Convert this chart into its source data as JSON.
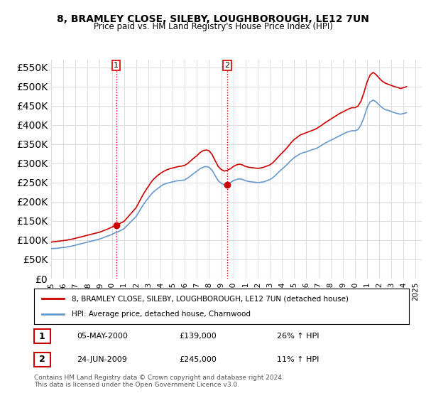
{
  "title": "8, BRAMLEY CLOSE, SILEBY, LOUGHBOROUGH, LE12 7UN",
  "subtitle": "Price paid vs. HM Land Registry's House Price Index (HPI)",
  "legend_label_red": "8, BRAMLEY CLOSE, SILEBY, LOUGHBOROUGH, LE12 7UN (detached house)",
  "legend_label_blue": "HPI: Average price, detached house, Charnwood",
  "annotation1_box": "1",
  "annotation1_date": "05-MAY-2000",
  "annotation1_price": "£139,000",
  "annotation1_hpi": "26% ↑ HPI",
  "annotation2_box": "2",
  "annotation2_date": "24-JUN-2009",
  "annotation2_price": "£245,000",
  "annotation2_hpi": "11% ↑ HPI",
  "footnote": "Contains HM Land Registry data © Crown copyright and database right 2024.\nThis data is licensed under the Open Government Licence v3.0.",
  "background_color": "#ffffff",
  "plot_background": "#ffffff",
  "grid_color": "#dddddd",
  "red_color": "#cc0000",
  "blue_color": "#6699cc",
  "ylim": [
    0,
    570000
  ],
  "yticks": [
    0,
    50000,
    100000,
    150000,
    200000,
    250000,
    300000,
    350000,
    400000,
    450000,
    500000,
    550000
  ],
  "purchase1_year": 2000.35,
  "purchase1_value": 139000,
  "purchase2_year": 2009.48,
  "purchase2_value": 245000,
  "vline1_year": 2000.35,
  "vline2_year": 2009.48,
  "hpi_years": [
    1995.0,
    1995.25,
    1995.5,
    1995.75,
    1996.0,
    1996.25,
    1996.5,
    1996.75,
    1997.0,
    1997.25,
    1997.5,
    1997.75,
    1998.0,
    1998.25,
    1998.5,
    1998.75,
    1999.0,
    1999.25,
    1999.5,
    1999.75,
    2000.0,
    2000.25,
    2000.5,
    2000.75,
    2001.0,
    2001.25,
    2001.5,
    2001.75,
    2002.0,
    2002.25,
    2002.5,
    2002.75,
    2003.0,
    2003.25,
    2003.5,
    2003.75,
    2004.0,
    2004.25,
    2004.5,
    2004.75,
    2005.0,
    2005.25,
    2005.5,
    2005.75,
    2006.0,
    2006.25,
    2006.5,
    2006.75,
    2007.0,
    2007.25,
    2007.5,
    2007.75,
    2008.0,
    2008.25,
    2008.5,
    2008.75,
    2009.0,
    2009.25,
    2009.5,
    2009.75,
    2010.0,
    2010.25,
    2010.5,
    2010.75,
    2011.0,
    2011.25,
    2011.5,
    2011.75,
    2012.0,
    2012.25,
    2012.5,
    2012.75,
    2013.0,
    2013.25,
    2013.5,
    2013.75,
    2014.0,
    2014.25,
    2014.5,
    2014.75,
    2015.0,
    2015.25,
    2015.5,
    2015.75,
    2016.0,
    2016.25,
    2016.5,
    2016.75,
    2017.0,
    2017.25,
    2017.5,
    2017.75,
    2018.0,
    2018.25,
    2018.5,
    2018.75,
    2019.0,
    2019.25,
    2019.5,
    2019.75,
    2020.0,
    2020.25,
    2020.5,
    2020.75,
    2021.0,
    2021.25,
    2021.5,
    2021.75,
    2022.0,
    2022.25,
    2022.5,
    2022.75,
    2023.0,
    2023.25,
    2023.5,
    2023.75,
    2024.0,
    2024.25
  ],
  "hpi_values": [
    78000,
    78500,
    79000,
    80000,
    81000,
    82000,
    83500,
    85000,
    87000,
    89000,
    91000,
    93000,
    95000,
    97000,
    99000,
    101000,
    103000,
    106000,
    109000,
    112000,
    115000,
    119000,
    122000,
    126000,
    130000,
    138000,
    146000,
    154000,
    162000,
    175000,
    188000,
    200000,
    210000,
    220000,
    228000,
    234000,
    240000,
    245000,
    248000,
    250000,
    252000,
    254000,
    255000,
    256000,
    257000,
    262000,
    268000,
    274000,
    280000,
    286000,
    290000,
    292000,
    290000,
    282000,
    268000,
    255000,
    248000,
    244000,
    246000,
    250000,
    255000,
    258000,
    260000,
    258000,
    255000,
    253000,
    252000,
    251000,
    250000,
    251000,
    252000,
    255000,
    258000,
    263000,
    270000,
    278000,
    285000,
    292000,
    300000,
    308000,
    315000,
    320000,
    325000,
    328000,
    330000,
    333000,
    336000,
    338000,
    342000,
    347000,
    352000,
    356000,
    360000,
    364000,
    368000,
    372000,
    376000,
    380000,
    383000,
    385000,
    385000,
    388000,
    400000,
    420000,
    445000,
    460000,
    465000,
    460000,
    452000,
    445000,
    440000,
    438000,
    435000,
    432000,
    430000,
    428000,
    430000,
    432000
  ],
  "red_years": [
    1995.0,
    1995.25,
    1995.5,
    1995.75,
    1996.0,
    1996.25,
    1996.5,
    1996.75,
    1997.0,
    1997.25,
    1997.5,
    1997.75,
    1998.0,
    1998.25,
    1998.5,
    1998.75,
    1999.0,
    1999.25,
    1999.5,
    1999.75,
    2000.0,
    2000.25,
    2000.5,
    2000.75,
    2001.0,
    2001.25,
    2001.5,
    2001.75,
    2002.0,
    2002.25,
    2002.5,
    2002.75,
    2003.0,
    2003.25,
    2003.5,
    2003.75,
    2004.0,
    2004.25,
    2004.5,
    2004.75,
    2005.0,
    2005.25,
    2005.5,
    2005.75,
    2006.0,
    2006.25,
    2006.5,
    2006.75,
    2007.0,
    2007.25,
    2007.5,
    2007.75,
    2008.0,
    2008.25,
    2008.5,
    2008.75,
    2009.0,
    2009.25,
    2009.5,
    2009.75,
    2010.0,
    2010.25,
    2010.5,
    2010.75,
    2011.0,
    2011.25,
    2011.5,
    2011.75,
    2012.0,
    2012.25,
    2012.5,
    2012.75,
    2013.0,
    2013.25,
    2013.5,
    2013.75,
    2014.0,
    2014.25,
    2014.5,
    2014.75,
    2015.0,
    2015.25,
    2015.5,
    2015.75,
    2016.0,
    2016.25,
    2016.5,
    2016.75,
    2017.0,
    2017.25,
    2017.5,
    2017.75,
    2018.0,
    2018.25,
    2018.5,
    2018.75,
    2019.0,
    2019.25,
    2019.5,
    2019.75,
    2020.0,
    2020.25,
    2020.5,
    2020.75,
    2021.0,
    2021.25,
    2021.5,
    2021.75,
    2022.0,
    2022.25,
    2022.5,
    2022.75,
    2023.0,
    2023.25,
    2023.5,
    2023.75,
    2024.0,
    2024.25
  ],
  "red_values": [
    95000,
    96000,
    97000,
    98000,
    99000,
    100000,
    101500,
    103000,
    105000,
    107000,
    109000,
    111000,
    113000,
    115000,
    117000,
    119000,
    121000,
    124000,
    127000,
    130500,
    134000,
    138000,
    141000,
    145000,
    149000,
    158000,
    167000,
    176000,
    185000,
    200000,
    215000,
    228000,
    240000,
    252000,
    261000,
    268000,
    274000,
    279000,
    283000,
    286000,
    288000,
    290000,
    292000,
    293000,
    295000,
    300000,
    307000,
    314000,
    320000,
    328000,
    333000,
    335000,
    333000,
    323000,
    307000,
    292000,
    284000,
    280000,
    282000,
    286000,
    292000,
    296000,
    298000,
    296000,
    292000,
    290000,
    289000,
    288000,
    287000,
    288000,
    290000,
    293000,
    296000,
    302000,
    310000,
    319000,
    327000,
    335000,
    344000,
    354000,
    362000,
    368000,
    374000,
    377000,
    380000,
    383000,
    386000,
    389000,
    394000,
    399000,
    405000,
    410000,
    415000,
    420000,
    425000,
    430000,
    434000,
    438000,
    442000,
    445000,
    445000,
    449000,
    462000,
    485000,
    512000,
    530000,
    537000,
    531000,
    522000,
    514000,
    509000,
    506000,
    503000,
    500000,
    498000,
    495000,
    497000,
    500000
  ]
}
